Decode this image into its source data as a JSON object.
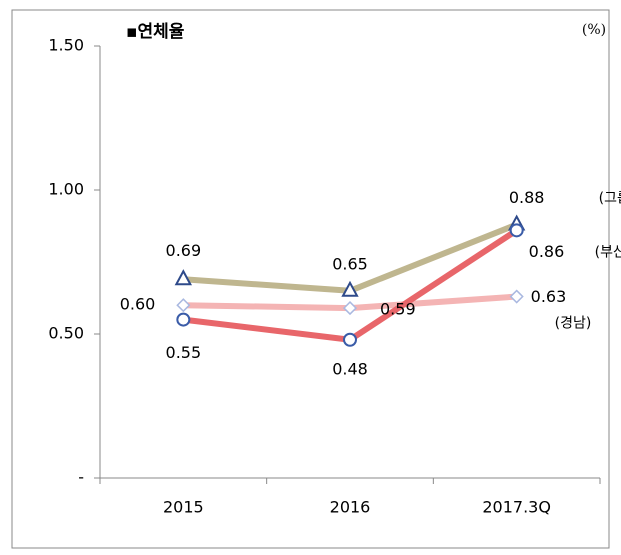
{
  "chart_data": {
    "type": "line",
    "title": "▪연체율",
    "unit": "(%)",
    "categories": [
      "2015",
      "2016",
      "2017.3Q"
    ],
    "ylim": [
      0,
      1.5
    ],
    "yticks": [
      {
        "value": 0,
        "label": "-"
      },
      {
        "value": 0.5,
        "label": "0.50"
      },
      {
        "value": 1,
        "label": "1.00"
      },
      {
        "value": 1.5,
        "label": "1.50"
      }
    ],
    "series": [
      {
        "name": "(그룹)",
        "color": "#bfb68f",
        "marker": "triangle",
        "values": [
          0.69,
          0.65,
          0.88
        ],
        "value_labels": [
          "0.69",
          "0.65",
          "0.88"
        ]
      },
      {
        "name": "(경남)",
        "color": "#f4b4b4",
        "marker": "diamond",
        "values": [
          0.6,
          0.59,
          0.63
        ],
        "value_labels": [
          "0.60",
          "0.59",
          "0.63"
        ]
      },
      {
        "name": "(부산)",
        "color": "#e8666a",
        "marker": "circle",
        "values": [
          0.55,
          0.48,
          0.86
        ],
        "value_labels": [
          "0.55",
          "0.48",
          "0.86"
        ]
      }
    ]
  }
}
